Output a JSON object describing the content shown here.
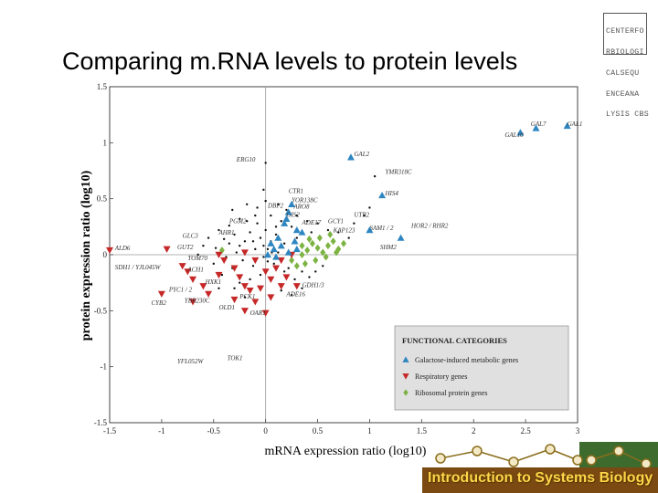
{
  "slide": {
    "title": "Comparing m.RNA levels to protein levels",
    "logo_lines": [
      "CENTERFO",
      "RBIOLOGI",
      "CALSEQU",
      "ENCEANA",
      "LYSIS CBS"
    ],
    "banner_text": "Introduction to Systems Biology"
  },
  "colors": {
    "galactose": "#2e86c1",
    "respiratory": "#c62828",
    "ribosomal": "#7cb342",
    "other": "#111111",
    "legend_bg": "#e0e0e0",
    "banner_bg": "#3d6b2e",
    "banner_text": "#ffd54a"
  },
  "chart_data": {
    "type": "scatter",
    "xlabel": "mRNA expression ratio (log10)",
    "ylabel": "protein expression ratio (log10)",
    "xlim": [
      -1.5,
      3
    ],
    "ylim": [
      -1.5,
      1.5
    ],
    "x_ticks": [
      "-1.5",
      "-1",
      "-0.5",
      "0",
      "0.5",
      "1",
      "1.5",
      "2",
      "2.5",
      "3"
    ],
    "y_ticks": [
      "-1.5",
      "-1",
      "-0.5",
      "0",
      "0.5",
      "1",
      "1.5"
    ],
    "x_tick_values": [
      -1.5,
      -1,
      -0.5,
      0,
      0.5,
      1,
      1.5,
      2,
      2.5,
      3
    ],
    "y_tick_values": [
      -1.5,
      -1,
      -0.5,
      0,
      0.5,
      1,
      1.5
    ],
    "zero_lines": true,
    "legend": {
      "title": "FUNCTIONAL CATEGORIES",
      "placement": "bottom-right",
      "entries": [
        {
          "label": "Galactose-induced metabolic genes",
          "series": "galactose",
          "marker": "triangle-up"
        },
        {
          "label": "Respiratory genes",
          "series": "respiratory",
          "marker": "triangle-down"
        },
        {
          "label": "Ribosomal protein genes",
          "series": "ribosomal",
          "marker": "diamond"
        }
      ]
    },
    "series": [
      {
        "key": "galactose",
        "marker": "triangle-up",
        "points": [
          [
            2.9,
            1.15
          ],
          [
            2.6,
            1.13
          ],
          [
            2.45,
            1.09
          ],
          [
            0.82,
            0.87
          ],
          [
            1.12,
            0.53
          ],
          [
            1.3,
            0.15
          ],
          [
            1.0,
            0.22
          ],
          [
            0.25,
            0.45
          ],
          [
            0.22,
            0.38
          ],
          [
            0.2,
            0.32
          ],
          [
            0.18,
            0.28
          ],
          [
            0.3,
            0.22
          ],
          [
            0.28,
            0.12
          ],
          [
            0.15,
            0.08
          ],
          [
            0.08,
            0.05
          ],
          [
            0.35,
            0.2
          ],
          [
            0.12,
            0.15
          ],
          [
            0.05,
            0.1
          ],
          [
            0.22,
            0.02
          ],
          [
            0.02,
            0.0
          ],
          [
            0.3,
            0.05
          ],
          [
            0.1,
            -0.02
          ]
        ]
      },
      {
        "key": "respiratory",
        "marker": "triangle-down",
        "points": [
          [
            -1.5,
            0.04
          ],
          [
            -0.95,
            0.05
          ],
          [
            -0.8,
            -0.1
          ],
          [
            -0.75,
            -0.15
          ],
          [
            -0.7,
            -0.22
          ],
          [
            -0.6,
            -0.28
          ],
          [
            -0.55,
            -0.35
          ],
          [
            -0.45,
            -0.18
          ],
          [
            -0.4,
            -0.05
          ],
          [
            -0.3,
            -0.12
          ],
          [
            -0.25,
            -0.2
          ],
          [
            -0.2,
            -0.28
          ],
          [
            -0.15,
            -0.32
          ],
          [
            -0.1,
            -0.42
          ],
          [
            -0.3,
            -0.4
          ],
          [
            -0.1,
            -0.05
          ],
          [
            0.0,
            -0.15
          ],
          [
            0.05,
            -0.22
          ],
          [
            0.1,
            -0.12
          ],
          [
            0.15,
            -0.05
          ],
          [
            -0.05,
            -0.3
          ],
          [
            -0.2,
            -0.5
          ],
          [
            0.0,
            -0.52
          ],
          [
            -1.0,
            -0.35
          ],
          [
            -0.2,
            0.02
          ],
          [
            0.2,
            -0.2
          ],
          [
            0.3,
            -0.28
          ],
          [
            -0.45,
            0.0
          ],
          [
            0.25,
            0.0
          ],
          [
            0.15,
            -0.28
          ],
          [
            -0.7,
            -0.42
          ],
          [
            0.05,
            -0.38
          ]
        ]
      },
      {
        "key": "ribosomal",
        "marker": "diamond",
        "points": [
          [
            -0.42,
            0.04
          ],
          [
            0.35,
            0.08
          ],
          [
            0.4,
            0.04
          ],
          [
            0.45,
            0.1
          ],
          [
            0.5,
            0.06
          ],
          [
            0.55,
            0.02
          ],
          [
            0.6,
            0.08
          ],
          [
            0.65,
            0.12
          ],
          [
            0.7,
            0.05
          ],
          [
            0.75,
            0.1
          ],
          [
            0.38,
            -0.08
          ],
          [
            0.48,
            -0.05
          ],
          [
            0.58,
            -0.02
          ],
          [
            0.68,
            0.02
          ],
          [
            0.42,
            0.14
          ],
          [
            0.52,
            0.15
          ],
          [
            0.62,
            0.18
          ],
          [
            0.3,
            -0.1
          ],
          [
            0.35,
            0.0
          ],
          [
            0.25,
            -0.05
          ]
        ]
      },
      {
        "key": "other",
        "marker": "dot",
        "points": [
          [
            -0.02,
            0.58
          ],
          [
            0.0,
            0.82
          ],
          [
            -0.35,
            0.1
          ],
          [
            -0.3,
            0.18
          ],
          [
            -0.25,
            0.08
          ],
          [
            -0.2,
            0.12
          ],
          [
            -0.15,
            0.2
          ],
          [
            -0.1,
            0.05
          ],
          [
            -0.05,
            0.15
          ],
          [
            0.0,
            0.22
          ],
          [
            0.05,
            0.12
          ],
          [
            0.1,
            0.18
          ],
          [
            -0.22,
            -0.05
          ],
          [
            -0.12,
            -0.1
          ],
          [
            -0.02,
            0.08
          ],
          [
            0.02,
            -0.06
          ],
          [
            0.08,
            -0.08
          ],
          [
            0.12,
            0.02
          ],
          [
            -0.28,
            0.02
          ],
          [
            -0.38,
            -0.02
          ],
          [
            -0.32,
            -0.12
          ],
          [
            -0.18,
            0.3
          ],
          [
            -0.08,
            0.28
          ],
          [
            0.18,
            -0.15
          ],
          [
            0.22,
            -0.12
          ],
          [
            -0.4,
            0.14
          ],
          [
            -0.45,
            0.22
          ],
          [
            0.15,
            0.3
          ],
          [
            0.05,
            0.35
          ],
          [
            -0.1,
            0.35
          ],
          [
            -0.25,
            0.32
          ],
          [
            -0.35,
            0.26
          ],
          [
            0.25,
            0.25
          ],
          [
            0.35,
            -0.15
          ],
          [
            0.3,
            0.15
          ],
          [
            -0.05,
            -0.18
          ],
          [
            -0.15,
            -0.22
          ],
          [
            -0.25,
            -0.25
          ],
          [
            0.18,
            0.1
          ],
          [
            0.28,
            -0.22
          ],
          [
            -0.48,
            0.06
          ],
          [
            -0.5,
            -0.08
          ],
          [
            0.42,
            -0.2
          ],
          [
            0.48,
            -0.15
          ],
          [
            0.2,
            0.4
          ],
          [
            0.3,
            0.35
          ],
          [
            -0.08,
            0.42
          ],
          [
            0.0,
            0.48
          ],
          [
            -0.18,
            0.45
          ],
          [
            0.1,
            0.25
          ],
          [
            0.4,
            0.3
          ],
          [
            0.5,
            0.28
          ],
          [
            -0.3,
            -0.3
          ],
          [
            -0.12,
            0.12
          ],
          [
            0.06,
            0.02
          ],
          [
            0.15,
            -0.32
          ],
          [
            0.25,
            -0.36
          ],
          [
            0.35,
            -0.3
          ],
          [
            -0.42,
            -0.18
          ],
          [
            0.55,
            -0.1
          ],
          [
            0.6,
            0.22
          ],
          [
            0.7,
            0.2
          ],
          [
            0.8,
            0.15
          ],
          [
            0.85,
            0.28
          ],
          [
            1.0,
            0.42
          ],
          [
            1.05,
            0.7
          ],
          [
            0.95,
            0.35
          ],
          [
            -0.6,
            0.08
          ],
          [
            -0.55,
            0.15
          ],
          [
            -0.65,
            0.0
          ],
          [
            -0.02,
            -0.02
          ],
          [
            0.02,
            0.05
          ],
          [
            -0.32,
            0.4
          ],
          [
            0.12,
            0.45
          ],
          [
            -0.45,
            -0.3
          ],
          [
            0.44,
            0.2
          ],
          [
            -0.2,
            -0.38
          ]
        ]
      }
    ],
    "annotations": [
      {
        "text": "GAL7",
        "x": 2.55,
        "y": 1.15
      },
      {
        "text": "GAL1",
        "x": 2.9,
        "y": 1.15
      },
      {
        "text": "GAL10",
        "x": 2.3,
        "y": 1.05
      },
      {
        "text": "ERG10",
        "x": -0.28,
        "y": 0.83
      },
      {
        "text": "GAL2",
        "x": 0.85,
        "y": 0.88
      },
      {
        "text": "YMR318C",
        "x": 1.15,
        "y": 0.72
      },
      {
        "text": "CTR1",
        "x": 0.22,
        "y": 0.55
      },
      {
        "text": "HIS4",
        "x": 1.15,
        "y": 0.53
      },
      {
        "text": "DBP2",
        "x": 0.02,
        "y": 0.42
      },
      {
        "text": "YOR138C",
        "x": 0.25,
        "y": 0.47
      },
      {
        "text": "ARO8",
        "x": 0.27,
        "y": 0.41
      },
      {
        "text": "GIS2",
        "x": 0.2,
        "y": 0.34
      },
      {
        "text": "PGM2",
        "x": -0.35,
        "y": 0.28
      },
      {
        "text": "UTR2",
        "x": 0.85,
        "y": 0.34
      },
      {
        "text": "ADE17",
        "x": 0.35,
        "y": 0.27
      },
      {
        "text": "GCY1",
        "x": 0.6,
        "y": 0.28
      },
      {
        "text": "AHR1",
        "x": -0.45,
        "y": 0.18
      },
      {
        "text": "SAM1 / 2",
        "x": 1.0,
        "y": 0.22
      },
      {
        "text": "HOR2 / RHR2",
        "x": 1.4,
        "y": 0.24
      },
      {
        "text": "KAP123",
        "x": 0.65,
        "y": 0.2
      },
      {
        "text": "GLC3",
        "x": -0.8,
        "y": 0.15
      },
      {
        "text": "SHM2",
        "x": 1.1,
        "y": 0.05
      },
      {
        "text": "GUT2",
        "x": -0.85,
        "y": 0.05
      },
      {
        "text": "ALD6",
        "x": -1.45,
        "y": 0.04
      },
      {
        "text": "TOM70",
        "x": -0.75,
        "y": -0.05
      },
      {
        "text": "SDH1 / YJL045W",
        "x": -1.45,
        "y": -0.13
      },
      {
        "text": "ACH1",
        "x": -0.75,
        "y": -0.15
      },
      {
        "text": "HXK1",
        "x": -0.58,
        "y": -0.26
      },
      {
        "text": "GDH1/3",
        "x": 0.35,
        "y": -0.29
      },
      {
        "text": "PYC1 / 2",
        "x": -0.93,
        "y": -0.33
      },
      {
        "text": "ADE16",
        "x": 0.2,
        "y": -0.37
      },
      {
        "text": "PCK1",
        "x": -0.25,
        "y": -0.39
      },
      {
        "text": "CYB2",
        "x": -1.1,
        "y": -0.45
      },
      {
        "text": "YBR230C",
        "x": -0.78,
        "y": -0.43
      },
      {
        "text": "OLD1",
        "x": -0.45,
        "y": -0.49
      },
      {
        "text": "OAR1",
        "x": -0.15,
        "y": -0.54
      },
      {
        "text": "TOK1",
        "x": -0.37,
        "y": -0.94
      },
      {
        "text": "YFL052W",
        "x": -0.85,
        "y": -0.97
      }
    ]
  }
}
